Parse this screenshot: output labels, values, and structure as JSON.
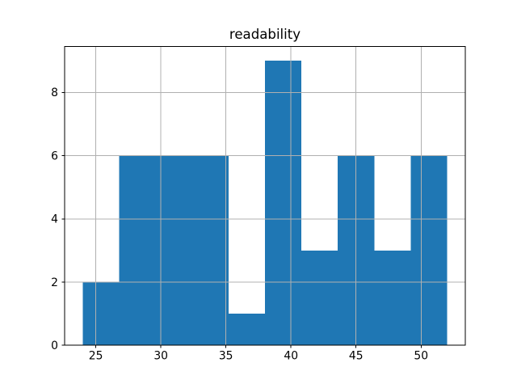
{
  "figure": {
    "title": "readability"
  },
  "chart_data": {
    "type": "histogram",
    "title": "readability",
    "xlabel": "",
    "ylabel": "",
    "bin_edges": [
      24,
      26.8,
      29.6,
      32.4,
      35.2,
      38,
      40.8,
      43.6,
      46.4,
      49.2,
      52
    ],
    "counts": [
      2,
      6,
      6,
      6,
      1,
      9,
      3,
      6,
      3,
      6
    ],
    "xlim": [
      22.6,
      53.4
    ],
    "ylim": [
      0,
      9.45
    ],
    "xticks": [
      25,
      30,
      35,
      40,
      45,
      50
    ],
    "yticks": [
      0,
      2,
      4,
      6,
      8
    ],
    "grid": true,
    "legend": false,
    "bar_color": "#1f77b4",
    "grid_color": "#b0b0b0",
    "spine_color": "#000000",
    "text_color": "#000000",
    "background_color": "#ffffff"
  }
}
